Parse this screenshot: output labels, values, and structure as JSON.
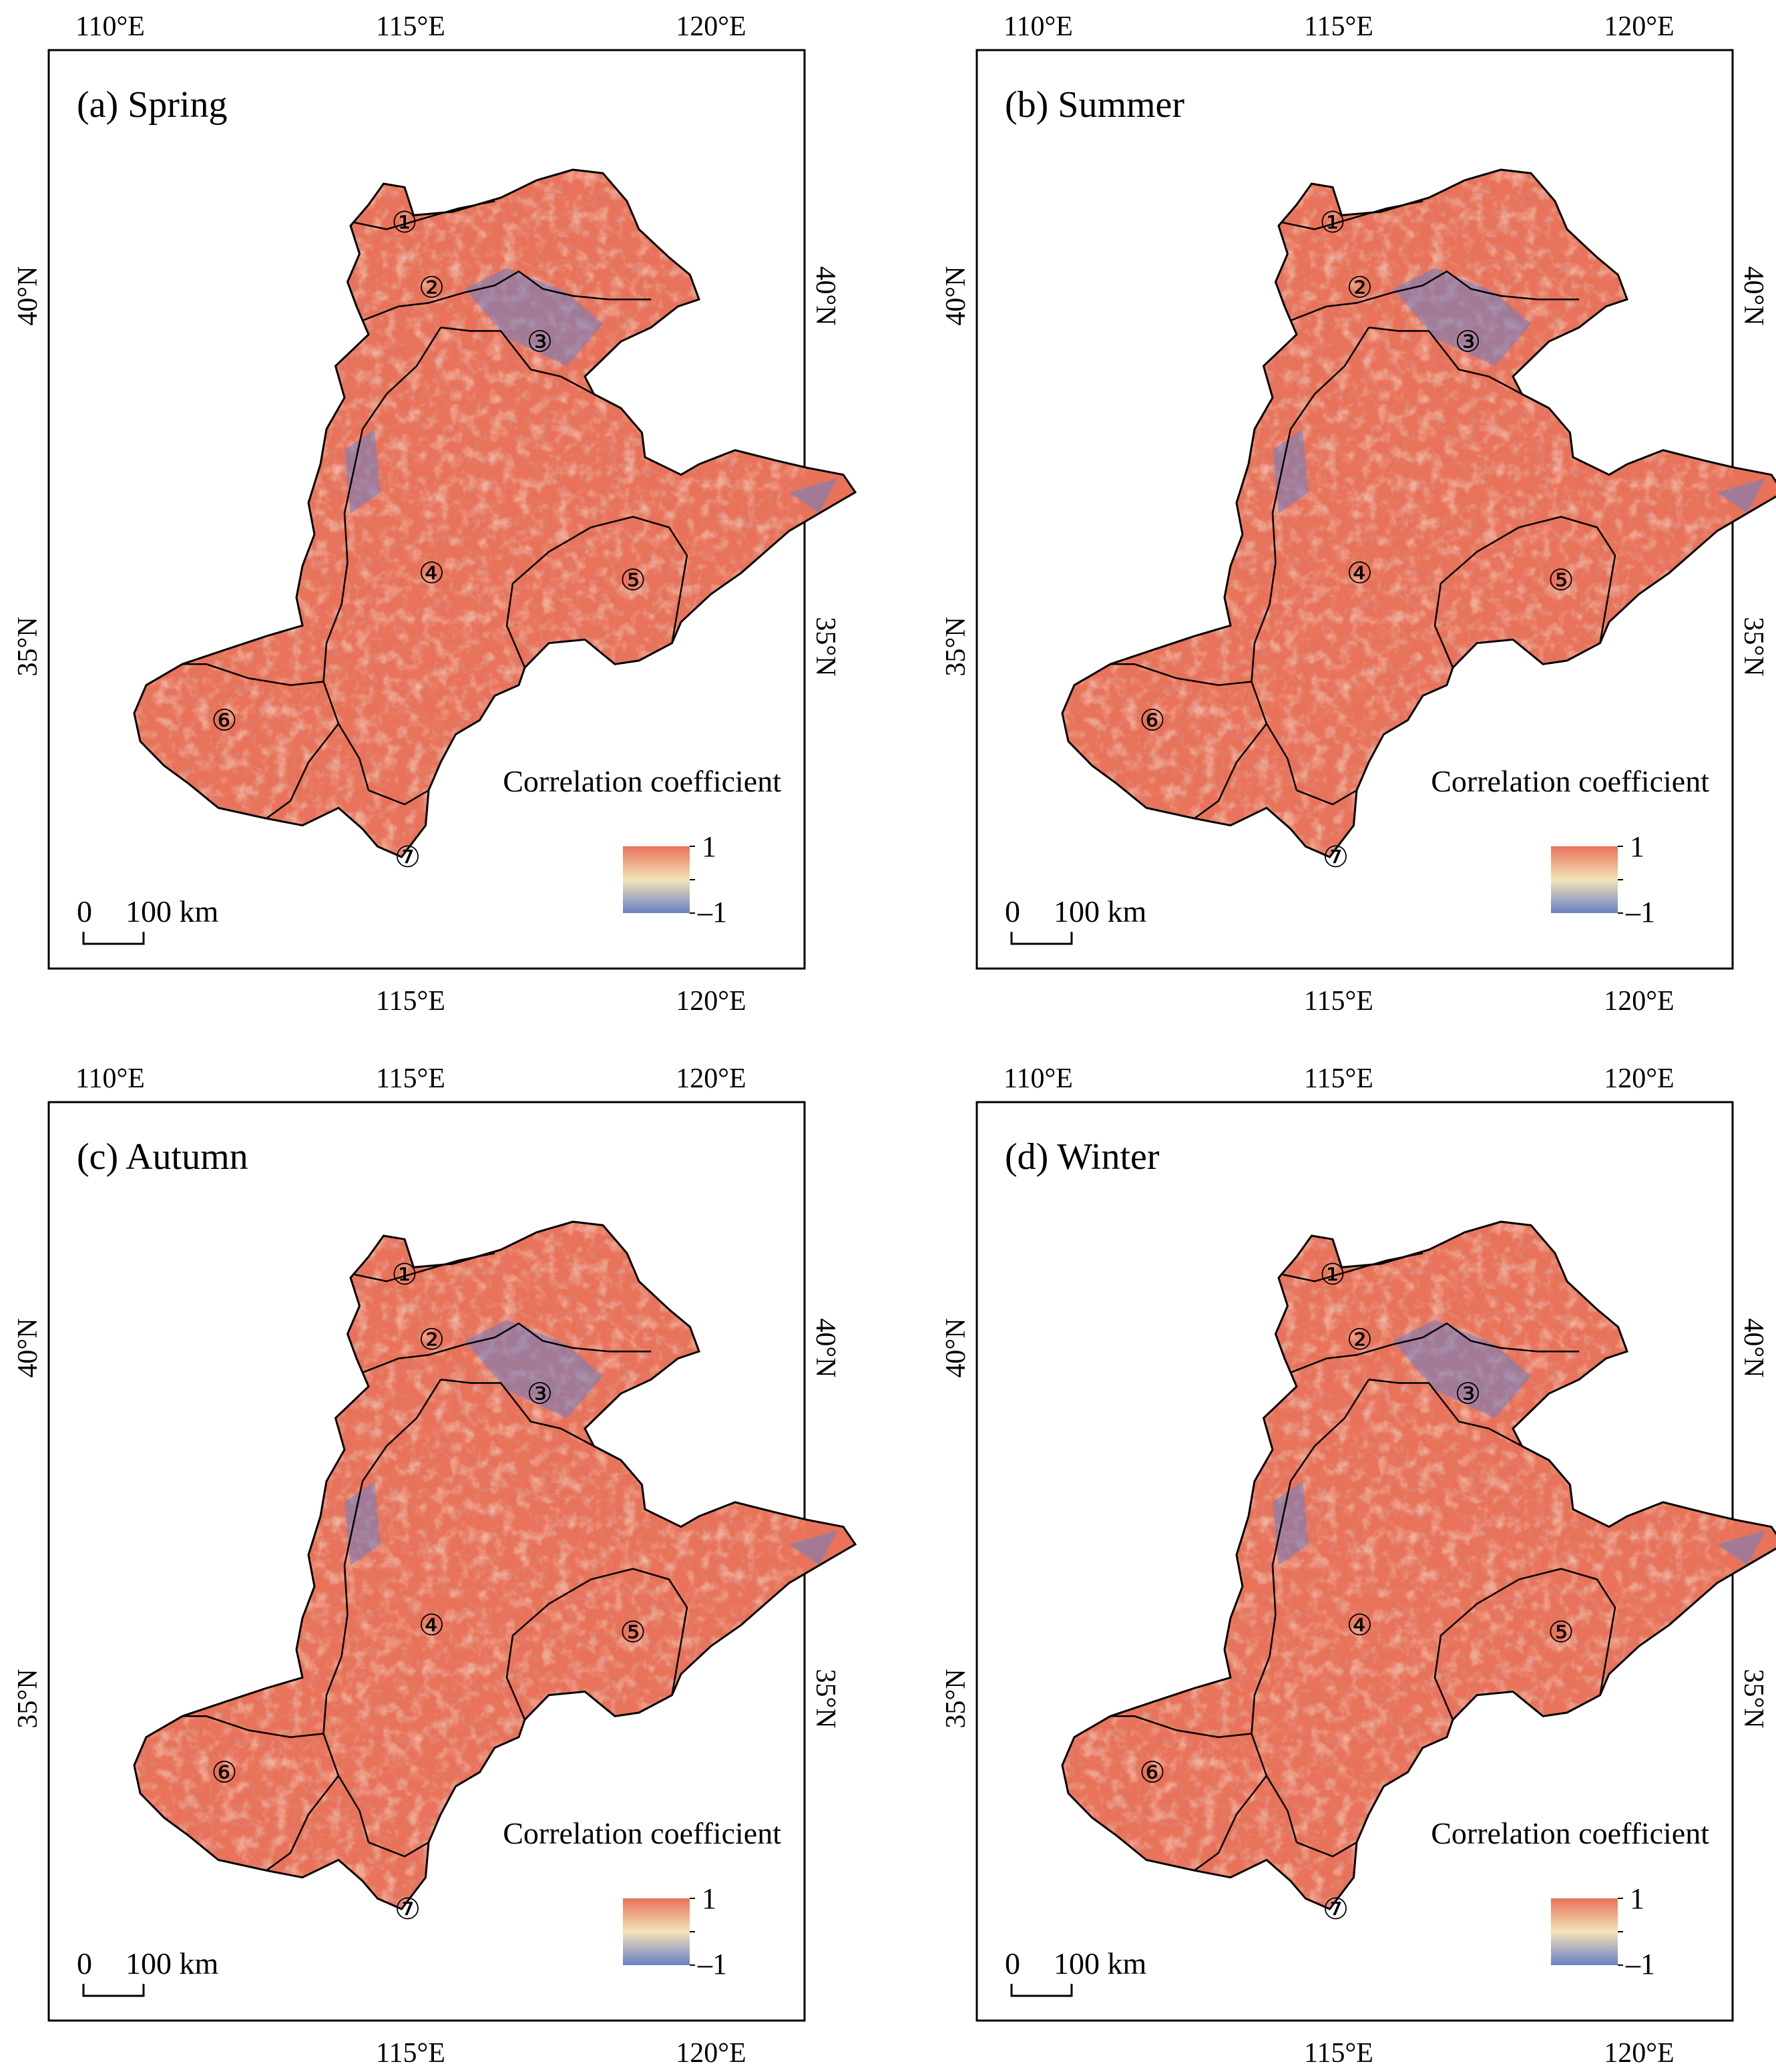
{
  "map": {
    "lon_ticks": [
      "110°E",
      "115°E",
      "120°E"
    ],
    "lat_ticks": [
      "40°N",
      "35°N"
    ],
    "colors": {
      "high": "#e8735a",
      "mid": "#f3e3b7",
      "low": "#6a7fc7",
      "boundary": "#000000"
    },
    "legend": {
      "title": "Correlation coefficient",
      "max_label": "1",
      "min_label": "–1"
    },
    "scale_bar": {
      "zero_label": "0",
      "dist_label": "100 km"
    },
    "region_labels": [
      "①",
      "②",
      "③",
      "④",
      "⑤",
      "⑥",
      "⑦"
    ]
  },
  "panels": [
    {
      "title": "(a) Spring"
    },
    {
      "title": "(b) Summer"
    },
    {
      "title": "(c) Autumn"
    },
    {
      "title": "(d) Winter"
    }
  ]
}
